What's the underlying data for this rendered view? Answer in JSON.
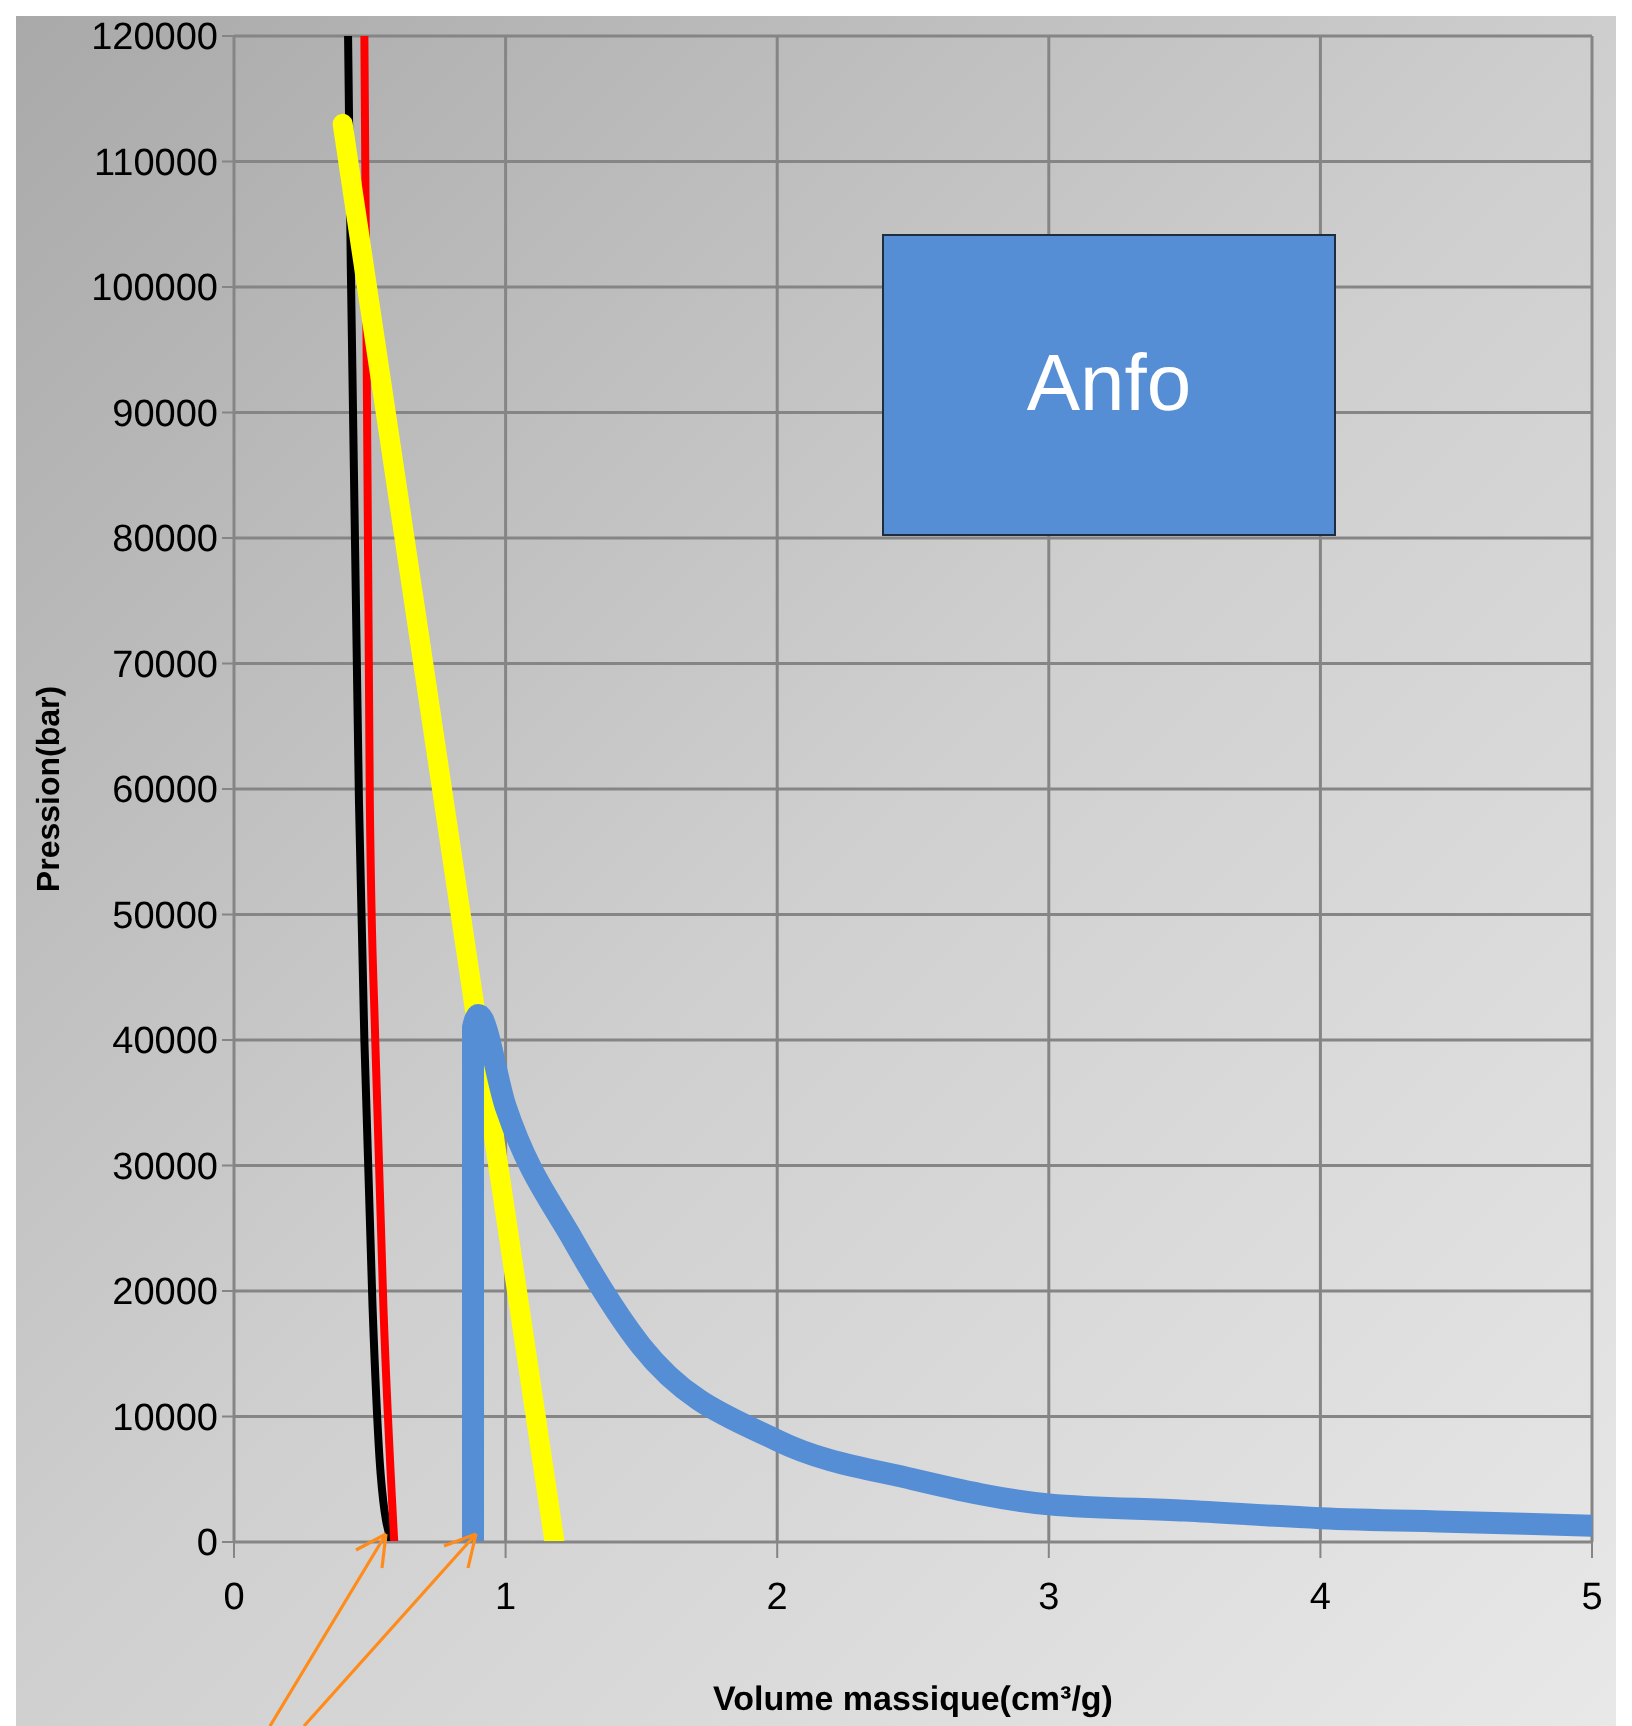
{
  "chart_data": {
    "type": "line",
    "xlabel": "Volume massique(cm³/g)",
    "ylabel": "Pression(bar)",
    "annotations": [
      "Anfo"
    ],
    "xlim": [
      0,
      5
    ],
    "xticks": [
      0,
      1,
      2,
      3,
      4,
      5
    ],
    "ylim": [
      0,
      120000
    ],
    "yticks": [
      0,
      10000,
      20000,
      30000,
      40000,
      50000,
      60000,
      70000,
      80000,
      90000,
      100000,
      110000,
      120000
    ],
    "grid": true,
    "marker": "none",
    "line_style": "solid",
    "series": [
      {
        "color": "#000000",
        "x": [
          0.42,
          0.43,
          0.46,
          0.48,
          0.51,
          0.54,
          0.58
        ],
        "values": [
          120000,
          101700,
          59100,
          40000,
          18800,
          5400,
          0
        ]
      },
      {
        "color": "#ff0000",
        "x": [
          0.48,
          0.5,
          0.52,
          0.55,
          0.59
        ],
        "values": [
          120000,
          59100,
          40000,
          18800,
          0
        ]
      },
      {
        "color": "#ffff00",
        "x": [
          0.4,
          1.18
        ],
        "values": [
          113000,
          0
        ]
      },
      {
        "color": "#558ed5",
        "x": [
          0.88,
          0.88,
          0.9,
          1,
          1.25,
          1.5,
          2,
          2.5,
          3,
          3.5,
          4,
          4.5,
          5
        ],
        "values": [
          0,
          41000,
          42000,
          34700,
          24000,
          15600,
          8100,
          5000,
          3000,
          2500,
          1900,
          1600,
          1300
        ]
      }
    ]
  }
}
